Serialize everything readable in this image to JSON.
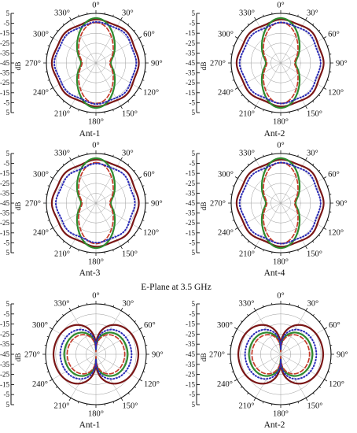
{
  "section_caption": "E-Plane at 3.5 GHz",
  "colors": {
    "s1": "#7a1616",
    "s2": "#2e8a2e",
    "s3": "#c43a2a",
    "s4": "#2a2ab8",
    "grid": "#9a9a9a",
    "axis": "#111111"
  },
  "chart_data": [
    {
      "type": "polar-line",
      "label": "Ant-1",
      "panel": 1,
      "ylabel": "dB",
      "r_ticks": [
        "5",
        "-5",
        "-15",
        "-25",
        "-35",
        "-45",
        "-35",
        "-25",
        "-15",
        "-5",
        "5"
      ],
      "r_range_db": [
        -45,
        5
      ],
      "angle_labels": [
        "0°",
        "30°",
        "60°",
        "90°",
        "120°",
        "150°",
        "180°",
        "210°",
        "240°",
        "270°",
        "300°",
        "330°"
      ],
      "pattern": "dumbbell",
      "series": [
        {
          "level_db": -2.0,
          "style": "solid"
        },
        {
          "level_db": -30.0,
          "petal_amp_db": 27,
          "style": "solid"
        },
        {
          "level_db": -31.0,
          "petal_amp_db": 24,
          "style": "dashed"
        },
        {
          "level_db": -4.5,
          "style": "dotted"
        }
      ]
    },
    {
      "type": "polar-line",
      "label": "Ant-2",
      "panel": 2,
      "ylabel": "dB",
      "r_ticks": [
        "5",
        "-5",
        "-15",
        "-25",
        "-35",
        "-45",
        "-35",
        "-25",
        "-15",
        "-5",
        "5"
      ],
      "r_range_db": [
        -45,
        5
      ],
      "angle_labels": [
        "0°",
        "30°",
        "60°",
        "90°",
        "120°",
        "150°",
        "180°",
        "210°",
        "240°",
        "270°",
        "300°",
        "330°"
      ],
      "pattern": "dumbbell",
      "series": [
        {
          "level_db": -2.0,
          "style": "solid"
        },
        {
          "level_db": -30.0,
          "petal_amp_db": 27,
          "style": "solid"
        },
        {
          "level_db": -31.0,
          "petal_amp_db": 24,
          "style": "dashed"
        },
        {
          "level_db": -5.0,
          "style": "dotted"
        }
      ]
    },
    {
      "type": "polar-line",
      "label": "Ant-3",
      "panel": 3,
      "ylabel": "dB",
      "r_ticks": [
        "5",
        "-5",
        "-15",
        "-25",
        "-35",
        "-45",
        "-35",
        "-25",
        "-15",
        "-5",
        "5"
      ],
      "r_range_db": [
        -45,
        5
      ],
      "angle_labels": [
        "0°",
        "30°",
        "60°",
        "90°",
        "120°",
        "150°",
        "180°",
        "210°",
        "240°",
        "270°",
        "300°",
        "330°"
      ],
      "pattern": "dumbbell",
      "series": [
        {
          "level_db": -2.0,
          "style": "solid"
        },
        {
          "level_db": -30.0,
          "petal_amp_db": 27,
          "style": "solid"
        },
        {
          "level_db": -31.0,
          "petal_amp_db": 24,
          "style": "dashed"
        },
        {
          "level_db": -6.0,
          "style": "dotted"
        }
      ]
    },
    {
      "type": "polar-line",
      "label": "Ant-4",
      "panel": 4,
      "ylabel": "dB",
      "r_ticks": [
        "5",
        "-5",
        "-15",
        "-25",
        "-35",
        "-45",
        "-35",
        "-25",
        "-15",
        "-5",
        "5"
      ],
      "r_range_db": [
        -45,
        5
      ],
      "angle_labels": [
        "0°",
        "30°",
        "60°",
        "90°",
        "120°",
        "150°",
        "180°",
        "210°",
        "240°",
        "270°",
        "300°",
        "330°"
      ],
      "pattern": "dumbbell",
      "series": [
        {
          "level_db": -2.0,
          "style": "solid"
        },
        {
          "level_db": -30.0,
          "petal_amp_db": 27,
          "style": "solid"
        },
        {
          "level_db": -31.0,
          "petal_amp_db": 24,
          "style": "dashed"
        },
        {
          "level_db": -5.0,
          "style": "dotted"
        }
      ]
    },
    {
      "type": "polar-line",
      "label": "Ant-1",
      "panel": 5,
      "ylabel": "dB",
      "r_ticks": [
        "5",
        "-5",
        "-15",
        "-25",
        "-35",
        "-45",
        "-35",
        "-25",
        "-15",
        "-5",
        "5"
      ],
      "r_range_db": [
        -45,
        5
      ],
      "angle_labels": [
        "0°",
        "30°",
        "60°",
        "90°",
        "120°",
        "150°",
        "180°",
        "210°",
        "240°",
        "270°",
        "300°",
        "330°"
      ],
      "pattern": "lobes",
      "series": [
        {
          "level_db": -1.0,
          "null_depth_db": 38,
          "style": "solid"
        },
        {
          "level_db": -12.0,
          "null_depth_db": 30,
          "style": "solid"
        },
        {
          "level_db": -15.0,
          "null_depth_db": 28,
          "style": "dashed"
        },
        {
          "level_db": -8.0,
          "null_depth_db": 32,
          "style": "dotted"
        }
      ]
    },
    {
      "type": "polar-line",
      "label": "Ant-2",
      "panel": 6,
      "ylabel": "dB",
      "r_ticks": [
        "5",
        "-5",
        "-15",
        "-25",
        "-35",
        "-45",
        "-35",
        "-25",
        "-15",
        "-5",
        "5"
      ],
      "r_range_db": [
        -45,
        5
      ],
      "angle_labels": [
        "0°",
        "30°",
        "60°",
        "90°",
        "120°",
        "150°",
        "180°",
        "210°",
        "240°",
        "270°",
        "300°",
        "330°"
      ],
      "pattern": "lobes",
      "series": [
        {
          "level_db": -1.0,
          "null_depth_db": 38,
          "style": "solid"
        },
        {
          "level_db": -12.0,
          "null_depth_db": 30,
          "style": "solid"
        },
        {
          "level_db": -15.0,
          "null_depth_db": 28,
          "style": "dashed"
        },
        {
          "level_db": -8.0,
          "null_depth_db": 32,
          "style": "dotted"
        }
      ]
    }
  ]
}
